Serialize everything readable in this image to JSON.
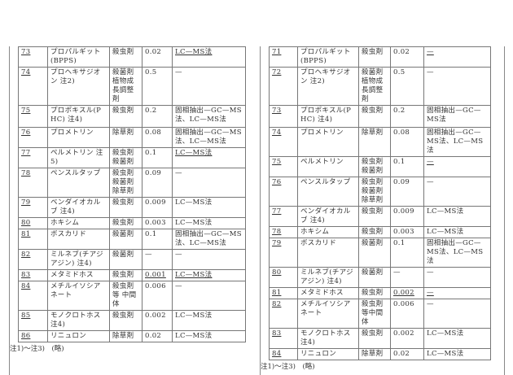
{
  "left": {
    "rows": [
      {
        "no": "73",
        "name": "プロパルギット(BPPS)",
        "use": "殺虫剤",
        "value": "0.02",
        "method": "LC—MS法",
        "mu": true,
        "h": 21
      },
      {
        "no": "74",
        "name": "プロヘキサジオン 注2)",
        "use": "殺菌剤 植物成長調整剤",
        "value": "0.5",
        "method": "—",
        "h": 40
      },
      {
        "no": "75",
        "name": "プロポキスル(PHC) 注4)",
        "use": "殺虫剤",
        "value": "0.2",
        "method": "固相抽出—GC—MS法、LC—MS法",
        "mu2": true,
        "h": 25
      },
      {
        "no": "76",
        "name": "プロメトリン",
        "use": "除草剤",
        "value": "0.08",
        "method": "固相抽出—GC—MS法、LC—MS法",
        "h": 20
      },
      {
        "no": "77",
        "name": "ペルメトリン 注5)",
        "use": "殺虫剤 殺菌剤",
        "value": "0.1",
        "method": "LC—MS法",
        "mu": true,
        "h": 22
      },
      {
        "no": "78",
        "name": "ペンスルタップ",
        "use": "殺虫剤 殺菌剤 除草剤",
        "value": "0.09",
        "method": "—",
        "h": 32
      },
      {
        "no": "79",
        "name": "ベンダイオカルブ 注4)",
        "use": "殺虫剤",
        "value": "0.009",
        "method": "LC—MS法",
        "h": 22
      },
      {
        "no": "80",
        "name": "ホキシム",
        "use": "殺虫剤",
        "value": "0.003",
        "method": "LC—MS法",
        "h": 10
      },
      {
        "no": "81",
        "name": "ボスカリド",
        "use": "殺菌剤",
        "value": "0.1",
        "method": "固相抽出—GC—MS法、LC—MS法",
        "h": 22
      },
      {
        "no": "82",
        "name": "ミルネブ(チアジアジン) 注4)",
        "use": "殺菌剤",
        "value": "—",
        "method": "—",
        "h": 22
      },
      {
        "no": "83",
        "name": "メタミドホス",
        "use": "殺虫剤",
        "value": "0.001",
        "method": "LC—MS法",
        "mu": true,
        "vu": true,
        "h": 11
      },
      {
        "no": "84",
        "name": "メチルイソシアネート",
        "use": "殺虫剤等 中間体",
        "value": "0.006",
        "method": "—",
        "h": 32
      },
      {
        "no": "85",
        "name": "モノクロトホス 注4)",
        "use": "殺虫剤",
        "value": "0.002",
        "method": "LC—MS法",
        "h": 22
      },
      {
        "no": "86",
        "name": "リニュロン",
        "use": "除草剤",
        "value": "0.02",
        "method": "LC—MS法",
        "h": 11
      }
    ]
  },
  "right": {
    "rows": [
      {
        "no": "71",
        "name": "プロパルギット(BPPS)",
        "use": "殺虫剤",
        "value": "0.02",
        "method": "—",
        "mu": true,
        "h": 21
      },
      {
        "no": "72",
        "name": "プロヘキサジオン 注2)",
        "use": "殺菌剤 植物成長調整剤",
        "value": "0.5",
        "method": "—",
        "h": 40
      },
      {
        "no": "73",
        "name": "プロポキスル(PHC) 注4)",
        "use": "殺虫剤",
        "value": "0.2",
        "method": "固相抽出—GC—MS法",
        "h": 25
      },
      {
        "no": "74",
        "name": "プロメトリン",
        "use": "除草剤",
        "value": "0.08",
        "method": "固相抽出—GC—MS法、LC—MS法",
        "h": 20
      },
      {
        "no": "75",
        "name": "ペルメトリン",
        "use": "殺虫剤 殺菌剤",
        "value": "0.1",
        "method": "—",
        "mu": true,
        "h": 22
      },
      {
        "no": "76",
        "name": "ペンスルタップ",
        "use": "殺虫剤 殺菌剤 除草剤",
        "value": "0.09",
        "method": "—",
        "h": 32
      },
      {
        "no": "77",
        "name": "ベンダイオカルブ 注4)",
        "use": "殺虫剤",
        "value": "0.009",
        "method": "LC—MS法",
        "h": 22
      },
      {
        "no": "78",
        "name": "ホキシム",
        "use": "殺虫剤",
        "value": "0.003",
        "method": "LC—MS法",
        "h": 10
      },
      {
        "no": "79",
        "name": "ボスカリド",
        "use": "殺菌剤",
        "value": "0.1",
        "method": "固相抽出—GC—MS法、LC—MS法",
        "h": 22
      },
      {
        "no": "80",
        "name": "ミルネブ(チアジアジン) 注4)",
        "use": "殺菌剤",
        "value": "—",
        "method": "—",
        "h": 22
      },
      {
        "no": "81",
        "name": "メタミドホス",
        "use": "殺虫剤",
        "value": "0.002",
        "method": "—",
        "mu": true,
        "vu": true,
        "h": 11
      },
      {
        "no": "82",
        "name": "メチルイソシアネート",
        "use": "殺虫剤等中間体",
        "value": "0.006",
        "method": "—",
        "h": 32
      },
      {
        "no": "83",
        "name": "モノクロトホス 注4)",
        "use": "殺虫剤",
        "value": "0.002",
        "method": "LC—MS法",
        "h": 22
      },
      {
        "no": "84",
        "name": "リニュロン",
        "use": "除草剤",
        "value": "0.02",
        "method": "LC—MS法",
        "h": 11
      }
    ]
  },
  "footnote_left": "注1)～注3)　(略)",
  "footnote_right": "注1)～注3)　(略)"
}
